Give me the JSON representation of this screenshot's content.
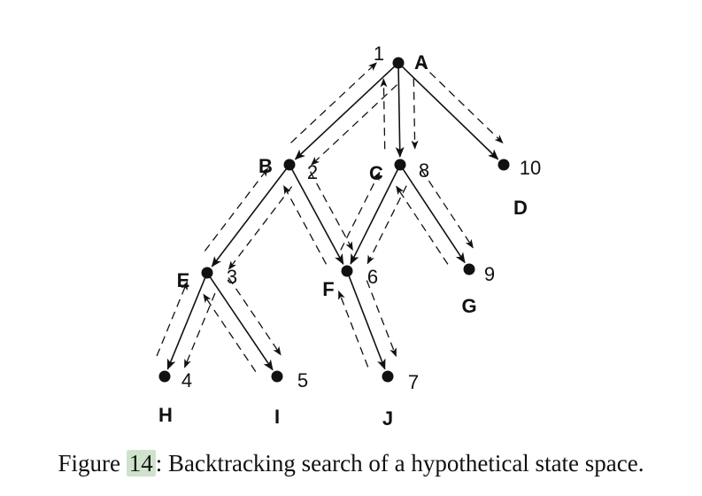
{
  "nodes": [
    {
      "id": "A",
      "letter": "A",
      "order": "1"
    },
    {
      "id": "B",
      "letter": "B",
      "order": "2"
    },
    {
      "id": "C",
      "letter": "C",
      "order": "8"
    },
    {
      "id": "D",
      "letter": "D",
      "order": "10"
    },
    {
      "id": "E",
      "letter": "E",
      "order": "3"
    },
    {
      "id": "F",
      "letter": "F",
      "order": "6"
    },
    {
      "id": "G",
      "letter": "G",
      "order": "9"
    },
    {
      "id": "H",
      "letter": "H",
      "order": "4"
    },
    {
      "id": "I",
      "letter": "I",
      "order": "5"
    },
    {
      "id": "J",
      "letter": "J",
      "order": "7"
    }
  ],
  "edges": [
    [
      "A",
      "B"
    ],
    [
      "A",
      "C"
    ],
    [
      "A",
      "D"
    ],
    [
      "B",
      "E"
    ],
    [
      "B",
      "F"
    ],
    [
      "C",
      "F"
    ],
    [
      "C",
      "G"
    ],
    [
      "E",
      "H"
    ],
    [
      "E",
      "I"
    ],
    [
      "F",
      "J"
    ]
  ],
  "search_trace": [
    [
      "A",
      "B",
      "forward"
    ],
    [
      "B",
      "E",
      "forward"
    ],
    [
      "E",
      "H",
      "forward"
    ],
    [
      "H",
      "E",
      "back"
    ],
    [
      "E",
      "I",
      "forward"
    ],
    [
      "I",
      "E",
      "back"
    ],
    [
      "E",
      "B",
      "back"
    ],
    [
      "B",
      "F",
      "forward"
    ],
    [
      "F",
      "J",
      "forward"
    ],
    [
      "J",
      "F",
      "back"
    ],
    [
      "F",
      "B",
      "back"
    ],
    [
      "B",
      "A",
      "back"
    ],
    [
      "A",
      "C",
      "forward"
    ],
    [
      "C",
      "F",
      "forward"
    ],
    [
      "F",
      "C",
      "back"
    ],
    [
      "C",
      "G",
      "forward"
    ],
    [
      "G",
      "C",
      "back"
    ],
    [
      "C",
      "A",
      "back"
    ],
    [
      "A",
      "D",
      "forward"
    ]
  ],
  "caption": {
    "prefix": "Figure",
    "number": "14",
    "text": ": Backtracking search of a hypothetical state space."
  }
}
